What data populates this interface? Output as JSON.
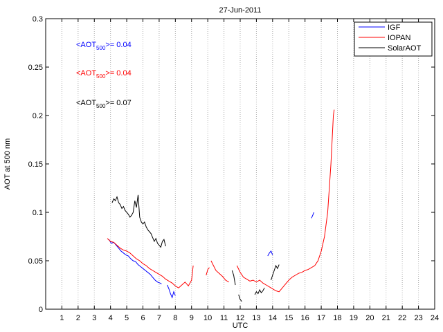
{
  "chart_data": {
    "type": "line",
    "title": "27-Jun-2011",
    "xlabel": "UTC",
    "ylabel": "AOT at 500 nm",
    "xlim": [
      0,
      24
    ],
    "ylim": [
      0,
      0.3
    ],
    "xticks": [
      "1",
      "2",
      "3",
      "4",
      "5",
      "6",
      "7",
      "8",
      "9",
      "10",
      "11",
      "12",
      "13",
      "14",
      "15",
      "16",
      "17",
      "18",
      "19",
      "20",
      "21",
      "22",
      "23",
      "24"
    ],
    "yticks": [
      "0",
      "0.05",
      "0.1",
      "0.15",
      "0.2",
      "0.25",
      "0.3"
    ],
    "grid": "x-only",
    "legend_position": "top-right",
    "annotations": [
      {
        "prefix": "<AOT",
        "sub": "500",
        "suffix": ">= 0.04",
        "color": "#0000ff"
      },
      {
        "prefix": "<AOT",
        "sub": "500",
        "suffix": ">= 0.04",
        "color": "#ff0000"
      },
      {
        "prefix": "<AOT",
        "sub": "500",
        "suffix": ">= 0.07",
        "color": "#000000"
      }
    ],
    "series": [
      {
        "name": "IGF",
        "color": "#0000ff",
        "segments": [
          [
            [
              3.9,
              0.072
            ],
            [
              4.05,
              0.068
            ],
            [
              4.2,
              0.069
            ],
            [
              4.35,
              0.066
            ],
            [
              4.5,
              0.063
            ],
            [
              4.65,
              0.06
            ],
            [
              4.8,
              0.058
            ],
            [
              4.95,
              0.056
            ],
            [
              5.1,
              0.055
            ],
            [
              5.25,
              0.052
            ],
            [
              5.4,
              0.05
            ],
            [
              5.55,
              0.049
            ],
            [
              5.7,
              0.046
            ],
            [
              5.85,
              0.044
            ],
            [
              6.0,
              0.042
            ],
            [
              6.15,
              0.04
            ],
            [
              6.3,
              0.038
            ],
            [
              6.45,
              0.036
            ],
            [
              6.6,
              0.033
            ],
            [
              6.75,
              0.03
            ],
            [
              6.9,
              0.028
            ],
            [
              7.05,
              0.027
            ],
            [
              7.15,
              0.026
            ]
          ],
          [
            [
              7.5,
              0.025
            ],
            [
              7.6,
              0.021
            ],
            [
              7.7,
              0.016
            ],
            [
              7.8,
              0.012
            ],
            [
              7.9,
              0.018
            ],
            [
              8.0,
              0.014
            ]
          ],
          [
            [
              13.7,
              0.055
            ],
            [
              13.8,
              0.058
            ],
            [
              13.9,
              0.06
            ],
            [
              14.0,
              0.056
            ]
          ],
          [
            [
              16.4,
              0.094
            ],
            [
              16.45,
              0.096
            ],
            [
              16.5,
              0.098
            ],
            [
              16.55,
              0.1
            ]
          ]
        ]
      },
      {
        "name": "IOPAN",
        "color": "#ff0000",
        "segments": [
          [
            [
              3.8,
              0.073
            ],
            [
              4.0,
              0.07
            ],
            [
              4.2,
              0.069
            ],
            [
              4.4,
              0.066
            ],
            [
              4.6,
              0.063
            ],
            [
              4.8,
              0.061
            ],
            [
              5.0,
              0.06
            ],
            [
              5.2,
              0.058
            ],
            [
              5.4,
              0.055
            ],
            [
              5.6,
              0.052
            ],
            [
              5.8,
              0.05
            ],
            [
              6.0,
              0.047
            ],
            [
              6.2,
              0.045
            ],
            [
              6.4,
              0.042
            ],
            [
              6.6,
              0.04
            ],
            [
              6.8,
              0.038
            ],
            [
              7.0,
              0.036
            ],
            [
              7.2,
              0.034
            ],
            [
              7.4,
              0.031
            ],
            [
              7.6,
              0.029
            ],
            [
              7.8,
              0.027
            ],
            [
              8.0,
              0.024
            ],
            [
              8.2,
              0.022
            ],
            [
              8.4,
              0.025
            ],
            [
              8.6,
              0.028
            ],
            [
              8.8,
              0.024
            ],
            [
              9.0,
              0.03
            ],
            [
              9.1,
              0.045
            ]
          ],
          [
            [
              9.9,
              0.035
            ],
            [
              10.0,
              0.041
            ],
            [
              10.1,
              0.043
            ]
          ],
          [
            [
              10.2,
              0.05
            ],
            [
              10.35,
              0.045
            ],
            [
              10.5,
              0.04
            ],
            [
              10.7,
              0.037
            ],
            [
              10.9,
              0.034
            ],
            [
              11.1,
              0.03
            ],
            [
              11.3,
              0.028
            ]
          ],
          [
            [
              11.8,
              0.045
            ],
            [
              12.0,
              0.038
            ],
            [
              12.2,
              0.033
            ],
            [
              12.4,
              0.031
            ],
            [
              12.6,
              0.029
            ],
            [
              12.8,
              0.03
            ],
            [
              13.0,
              0.028
            ],
            [
              13.2,
              0.03
            ],
            [
              13.4,
              0.027
            ],
            [
              13.6,
              0.025
            ],
            [
              13.8,
              0.023
            ],
            [
              14.0,
              0.021
            ],
            [
              14.2,
              0.019
            ],
            [
              14.4,
              0.018
            ],
            [
              14.6,
              0.022
            ],
            [
              14.8,
              0.026
            ],
            [
              15.0,
              0.03
            ],
            [
              15.2,
              0.033
            ],
            [
              15.4,
              0.035
            ],
            [
              15.6,
              0.037
            ],
            [
              15.8,
              0.038
            ],
            [
              16.0,
              0.04
            ],
            [
              16.2,
              0.041
            ],
            [
              16.4,
              0.043
            ],
            [
              16.6,
              0.045
            ],
            [
              16.8,
              0.05
            ],
            [
              17.0,
              0.06
            ],
            [
              17.2,
              0.075
            ],
            [
              17.4,
              0.1
            ],
            [
              17.6,
              0.15
            ],
            [
              17.75,
              0.2
            ],
            [
              17.8,
              0.206
            ]
          ]
        ]
      },
      {
        "name": "SolarAOT",
        "color": "#000000",
        "segments": [
          [
            [
              4.1,
              0.11
            ],
            [
              4.2,
              0.114
            ],
            [
              4.3,
              0.112
            ],
            [
              4.4,
              0.116
            ],
            [
              4.5,
              0.11
            ],
            [
              4.6,
              0.108
            ],
            [
              4.7,
              0.104
            ],
            [
              4.8,
              0.106
            ],
            [
              4.9,
              0.102
            ],
            [
              5.0,
              0.1
            ],
            [
              5.1,
              0.098
            ],
            [
              5.2,
              0.095
            ],
            [
              5.3,
              0.097
            ],
            [
              5.4,
              0.1
            ],
            [
              5.5,
              0.112
            ],
            [
              5.6,
              0.105
            ],
            [
              5.7,
              0.118
            ],
            [
              5.8,
              0.095
            ],
            [
              5.9,
              0.09
            ],
            [
              6.0,
              0.088
            ],
            [
              6.1,
              0.09
            ],
            [
              6.2,
              0.085
            ],
            [
              6.3,
              0.082
            ],
            [
              6.4,
              0.08
            ],
            [
              6.5,
              0.078
            ],
            [
              6.6,
              0.074
            ],
            [
              6.7,
              0.07
            ],
            [
              6.8,
              0.073
            ],
            [
              6.9,
              0.068
            ],
            [
              7.0,
              0.066
            ],
            [
              7.1,
              0.064
            ],
            [
              7.2,
              0.07
            ],
            [
              7.3,
              0.072
            ],
            [
              7.4,
              0.065
            ]
          ],
          [
            [
              11.5,
              0.04
            ],
            [
              11.6,
              0.035
            ],
            [
              11.7,
              0.025
            ]
          ],
          [
            [
              11.9,
              0.015
            ],
            [
              12.0,
              0.01
            ],
            [
              12.1,
              0.008
            ]
          ],
          [
            [
              12.9,
              0.015
            ],
            [
              13.0,
              0.018
            ],
            [
              13.1,
              0.016
            ],
            [
              13.2,
              0.02
            ],
            [
              13.3,
              0.017
            ],
            [
              13.4,
              0.019
            ],
            [
              13.5,
              0.022
            ]
          ],
          [
            [
              13.9,
              0.03
            ],
            [
              14.0,
              0.035
            ],
            [
              14.1,
              0.04
            ],
            [
              14.2,
              0.045
            ],
            [
              14.3,
              0.042
            ],
            [
              14.4,
              0.046
            ]
          ]
        ]
      }
    ]
  }
}
